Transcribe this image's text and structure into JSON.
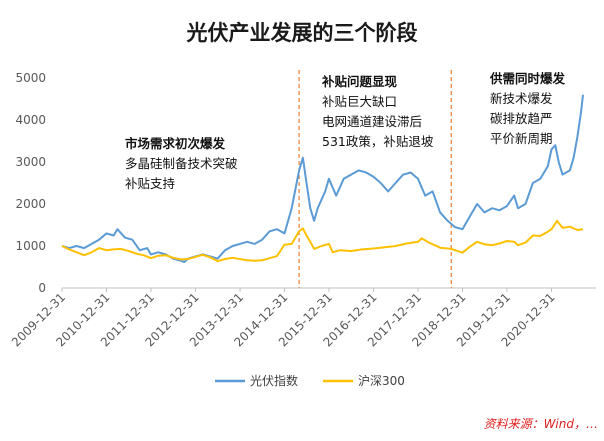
{
  "chart_data": {
    "type": "line",
    "title": "光伏产业发展的三个阶段",
    "ylim": [
      0,
      5000
    ],
    "yticks": [
      0,
      1000,
      2000,
      3000,
      4000,
      5000
    ],
    "x_range": [
      "2009-12-31",
      "2021-12-31"
    ],
    "xticks": [
      "2009-12-31",
      "2010-12-31",
      "2011-12-31",
      "2012-12-31",
      "2013-12-31",
      "2014-12-31",
      "2015-12-31",
      "2016-12-31",
      "2017-12-31",
      "2018-12-31",
      "2019-12-31",
      "2020-12-31"
    ],
    "grid": false,
    "legend_position": "bottom",
    "series": [
      {
        "name": "光伏指数",
        "color": "#5b9bd5",
        "points": [
          [
            "2009-12-31",
            1000
          ],
          [
            "2010-02-28",
            950
          ],
          [
            "2010-04-30",
            1000
          ],
          [
            "2010-06-30",
            950
          ],
          [
            "2010-08-31",
            1050
          ],
          [
            "2010-10-31",
            1150
          ],
          [
            "2010-12-31",
            1300
          ],
          [
            "2011-02-28",
            1250
          ],
          [
            "2011-03-31",
            1400
          ],
          [
            "2011-05-31",
            1200
          ],
          [
            "2011-07-31",
            1150
          ],
          [
            "2011-09-30",
            900
          ],
          [
            "2011-11-30",
            950
          ],
          [
            "2011-12-31",
            800
          ],
          [
            "2012-02-29",
            850
          ],
          [
            "2012-04-30",
            800
          ],
          [
            "2012-06-30",
            700
          ],
          [
            "2012-08-31",
            650
          ],
          [
            "2012-09-30",
            620
          ],
          [
            "2012-10-31",
            700
          ],
          [
            "2012-12-31",
            750
          ],
          [
            "2013-02-28",
            800
          ],
          [
            "2013-04-30",
            750
          ],
          [
            "2013-06-30",
            700
          ],
          [
            "2013-08-31",
            900
          ],
          [
            "2013-10-31",
            1000
          ],
          [
            "2013-12-31",
            1050
          ],
          [
            "2014-02-28",
            1100
          ],
          [
            "2014-04-30",
            1050
          ],
          [
            "2014-06-30",
            1150
          ],
          [
            "2014-08-31",
            1350
          ],
          [
            "2014-10-31",
            1400
          ],
          [
            "2014-12-31",
            1300
          ],
          [
            "2015-02-28",
            1900
          ],
          [
            "2015-04-30",
            2800
          ],
          [
            "2015-05-31",
            3100
          ],
          [
            "2015-06-30",
            2500
          ],
          [
            "2015-07-31",
            1900
          ],
          [
            "2015-08-31",
            1600
          ],
          [
            "2015-09-30",
            1900
          ],
          [
            "2015-11-30",
            2300
          ],
          [
            "2015-12-31",
            2600
          ],
          [
            "2016-02-29",
            2200
          ],
          [
            "2016-04-30",
            2600
          ],
          [
            "2016-06-30",
            2700
          ],
          [
            "2016-08-31",
            2800
          ],
          [
            "2016-10-31",
            2750
          ],
          [
            "2016-12-31",
            2650
          ],
          [
            "2017-02-28",
            2500
          ],
          [
            "2017-04-30",
            2300
          ],
          [
            "2017-06-30",
            2500
          ],
          [
            "2017-08-31",
            2700
          ],
          [
            "2017-10-31",
            2750
          ],
          [
            "2017-12-31",
            2600
          ],
          [
            "2018-02-28",
            2200
          ],
          [
            "2018-04-30",
            2300
          ],
          [
            "2018-06-30",
            1800
          ],
          [
            "2018-08-31",
            1600
          ],
          [
            "2018-10-31",
            1450
          ],
          [
            "2018-12-31",
            1400
          ],
          [
            "2019-02-28",
            1700
          ],
          [
            "2019-04-30",
            2000
          ],
          [
            "2019-06-30",
            1800
          ],
          [
            "2019-08-31",
            1900
          ],
          [
            "2019-10-31",
            1850
          ],
          [
            "2019-12-31",
            1950
          ],
          [
            "2020-02-29",
            2200
          ],
          [
            "2020-03-31",
            1900
          ],
          [
            "2020-05-31",
            2000
          ],
          [
            "2020-07-31",
            2500
          ],
          [
            "2020-09-30",
            2600
          ],
          [
            "2020-11-30",
            2900
          ],
          [
            "2020-12-31",
            3300
          ],
          [
            "2021-01-31",
            3400
          ],
          [
            "2021-02-28",
            3000
          ],
          [
            "2021-03-31",
            2700
          ],
          [
            "2021-05-31",
            2800
          ],
          [
            "2021-06-30",
            3100
          ],
          [
            "2021-07-31",
            3600
          ],
          [
            "2021-08-31",
            4200
          ],
          [
            "2021-09-15",
            4600
          ]
        ]
      },
      {
        "name": "沪深300",
        "color": "#ffc000",
        "points": [
          [
            "2009-12-31",
            1000
          ],
          [
            "2010-02-28",
            920
          ],
          [
            "2010-04-30",
            850
          ],
          [
            "2010-06-30",
            780
          ],
          [
            "2010-08-31",
            850
          ],
          [
            "2010-10-31",
            950
          ],
          [
            "2010-12-31",
            900
          ],
          [
            "2011-02-28",
            920
          ],
          [
            "2011-04-30",
            930
          ],
          [
            "2011-06-30",
            880
          ],
          [
            "2011-08-31",
            820
          ],
          [
            "2011-10-31",
            780
          ],
          [
            "2011-12-31",
            710
          ],
          [
            "2012-02-29",
            770
          ],
          [
            "2012-04-30",
            780
          ],
          [
            "2012-06-30",
            720
          ],
          [
            "2012-08-31",
            680
          ],
          [
            "2012-10-31",
            690
          ],
          [
            "2012-12-31",
            740
          ],
          [
            "2013-02-28",
            790
          ],
          [
            "2013-04-30",
            730
          ],
          [
            "2013-06-30",
            640
          ],
          [
            "2013-08-31",
            690
          ],
          [
            "2013-10-31",
            720
          ],
          [
            "2013-12-31",
            690
          ],
          [
            "2014-02-28",
            660
          ],
          [
            "2014-04-30",
            650
          ],
          [
            "2014-06-30",
            660
          ],
          [
            "2014-08-31",
            710
          ],
          [
            "2014-10-31",
            760
          ],
          [
            "2014-12-31",
            1030
          ],
          [
            "2015-02-28",
            1050
          ],
          [
            "2015-04-30",
            1350
          ],
          [
            "2015-05-31",
            1420
          ],
          [
            "2015-06-30",
            1250
          ],
          [
            "2015-07-31",
            1100
          ],
          [
            "2015-08-31",
            930
          ],
          [
            "2015-10-31",
            1000
          ],
          [
            "2015-12-31",
            1050
          ],
          [
            "2016-01-31",
            850
          ],
          [
            "2016-03-31",
            900
          ],
          [
            "2016-06-30",
            880
          ],
          [
            "2016-09-30",
            920
          ],
          [
            "2016-12-31",
            940
          ],
          [
            "2017-03-31",
            970
          ],
          [
            "2017-06-30",
            1000
          ],
          [
            "2017-09-30",
            1060
          ],
          [
            "2017-12-31",
            1100
          ],
          [
            "2018-01-31",
            1180
          ],
          [
            "2018-03-31",
            1080
          ],
          [
            "2018-06-30",
            960
          ],
          [
            "2018-09-30",
            930
          ],
          [
            "2018-12-31",
            840
          ],
          [
            "2019-02-28",
            980
          ],
          [
            "2019-04-30",
            1100
          ],
          [
            "2019-06-30",
            1040
          ],
          [
            "2019-08-31",
            1020
          ],
          [
            "2019-10-31",
            1060
          ],
          [
            "2019-12-31",
            1120
          ],
          [
            "2020-02-29",
            1100
          ],
          [
            "2020-03-31",
            1020
          ],
          [
            "2020-05-31",
            1080
          ],
          [
            "2020-07-31",
            1250
          ],
          [
            "2020-09-30",
            1240
          ],
          [
            "2020-11-30",
            1340
          ],
          [
            "2020-12-31",
            1400
          ],
          [
            "2021-02-15",
            1600
          ],
          [
            "2021-03-31",
            1430
          ],
          [
            "2021-05-31",
            1460
          ],
          [
            "2021-07-31",
            1380
          ],
          [
            "2021-09-15",
            1400
          ]
        ]
      }
    ],
    "annotations": [
      {
        "heading": "市场需求初次爆发",
        "lines": [
          "多晶硅制备技术突破",
          "补贴支持"
        ]
      },
      {
        "heading": "补贴问题显现",
        "lines": [
          "补贴巨大缺口",
          "电网通道建设滞后",
          "531政策，补贴退坡"
        ]
      },
      {
        "heading": "供需同时爆发",
        "lines": [
          "新技术爆发",
          "碳排放趋严",
          "平价新周期"
        ]
      }
    ],
    "stage_dividers": [
      "2015-04-30",
      "2018-09-30"
    ],
    "source_text": "资料来源：Wind，…"
  }
}
